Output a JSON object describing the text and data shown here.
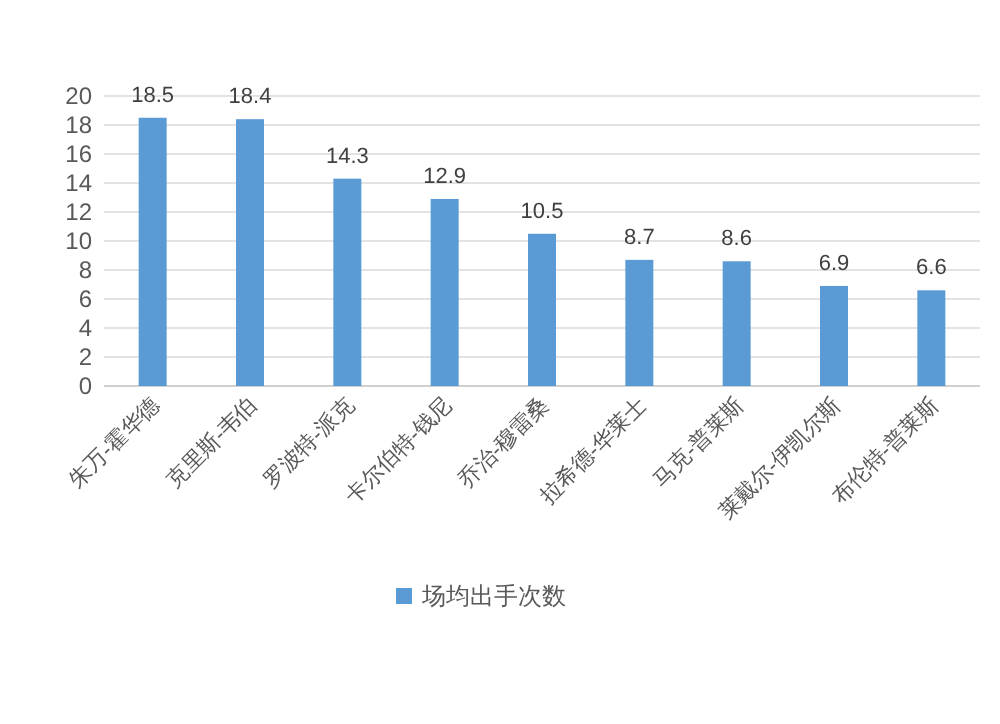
{
  "chart_data": {
    "type": "bar",
    "categories": [
      "朱万-霍华德",
      "克里斯-韦伯",
      "罗波特-派克",
      "卡尔伯特-钱尼",
      "乔治-穆雷桑",
      "拉希德-华莱士",
      "马克-普莱斯",
      "莱戴尔-伊凯尔斯",
      "布伦特-普莱斯"
    ],
    "series": [
      {
        "name": "场均出手次数",
        "color": "#5b9bd5",
        "values": [
          18.5,
          18.4,
          14.3,
          12.9,
          10.5,
          8.7,
          8.6,
          6.9,
          6.6
        ]
      }
    ],
    "ylim": [
      0,
      20
    ],
    "yticks": [
      0,
      2,
      4,
      6,
      8,
      10,
      12,
      14,
      16,
      18,
      20
    ],
    "grid": "y",
    "data_labels": true,
    "legend": "bottom"
  }
}
